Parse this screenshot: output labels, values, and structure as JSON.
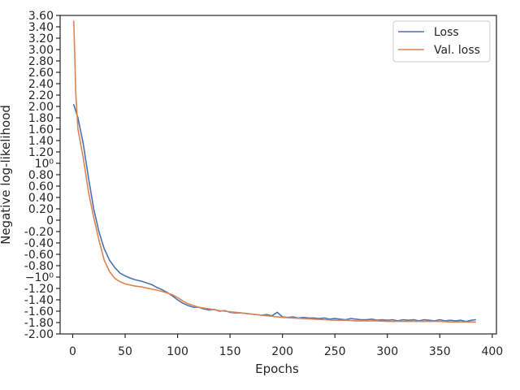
{
  "chart_data": {
    "type": "line",
    "xlabel": "Epochs",
    "ylabel": "Negative log-likelihood",
    "xlim": [
      -12,
      404
    ],
    "ylim": [
      -2.0,
      3.6
    ],
    "x_ticks": [
      0,
      50,
      100,
      150,
      200,
      250,
      300,
      350,
      400
    ],
    "y_ticks": [
      {
        "value": -2.0,
        "label": "-2.00"
      },
      {
        "value": -1.8,
        "label": "-1.80"
      },
      {
        "value": -1.6,
        "label": "-1.60"
      },
      {
        "value": -1.4,
        "label": "-1.40"
      },
      {
        "value": -1.2,
        "label": "-1.20"
      },
      {
        "value": -1.0,
        "label": "−10⁰"
      },
      {
        "value": -0.8,
        "label": "-0.80"
      },
      {
        "value": -0.6,
        "label": "-0.60"
      },
      {
        "value": -0.4,
        "label": "-0.40"
      },
      {
        "value": -0.2,
        "label": "-0.20"
      },
      {
        "value": 0.0,
        "label": "0"
      },
      {
        "value": 0.2,
        "label": "0.20"
      },
      {
        "value": 0.4,
        "label": "0.40"
      },
      {
        "value": 0.6,
        "label": "0.60"
      },
      {
        "value": 0.8,
        "label": "0.80"
      },
      {
        "value": 1.0,
        "label": "10⁰"
      },
      {
        "value": 1.2,
        "label": "1.20"
      },
      {
        "value": 1.4,
        "label": "1.40"
      },
      {
        "value": 1.6,
        "label": "1.60"
      },
      {
        "value": 1.8,
        "label": "1.80"
      },
      {
        "value": 2.0,
        "label": "2.00"
      },
      {
        "value": 2.2,
        "label": "2.20"
      },
      {
        "value": 2.4,
        "label": "2.40"
      },
      {
        "value": 2.6,
        "label": "2.60"
      },
      {
        "value": 2.8,
        "label": "2.80"
      },
      {
        "value": 3.0,
        "label": "3.00"
      },
      {
        "value": 3.2,
        "label": "3.20"
      },
      {
        "value": 3.4,
        "label": "3.40"
      },
      {
        "value": 3.6,
        "label": "3.60"
      }
    ],
    "grid": false,
    "legend_position": "top-right",
    "series": [
      {
        "name": "Loss",
        "color": "#4c72b0",
        "x": [
          1,
          5,
          10,
          15,
          20,
          25,
          30,
          35,
          40,
          45,
          50,
          55,
          60,
          65,
          70,
          75,
          80,
          85,
          90,
          95,
          100,
          105,
          110,
          115,
          120,
          125,
          130,
          135,
          140,
          145,
          150,
          155,
          160,
          165,
          170,
          175,
          180,
          185,
          190,
          195,
          200,
          205,
          210,
          215,
          220,
          225,
          230,
          235,
          240,
          245,
          250,
          255,
          260,
          265,
          270,
          275,
          280,
          285,
          290,
          295,
          300,
          305,
          310,
          315,
          320,
          325,
          330,
          335,
          340,
          345,
          350,
          355,
          360,
          365,
          370,
          375,
          380,
          384
        ],
        "y": [
          2.03,
          1.8,
          1.35,
          0.75,
          0.2,
          -0.2,
          -0.5,
          -0.7,
          -0.83,
          -0.93,
          -0.98,
          -1.02,
          -1.05,
          -1.07,
          -1.1,
          -1.13,
          -1.18,
          -1.22,
          -1.27,
          -1.33,
          -1.4,
          -1.46,
          -1.5,
          -1.53,
          -1.53,
          -1.56,
          -1.58,
          -1.57,
          -1.6,
          -1.59,
          -1.62,
          -1.63,
          -1.63,
          -1.64,
          -1.65,
          -1.66,
          -1.67,
          -1.66,
          -1.68,
          -1.62,
          -1.7,
          -1.71,
          -1.7,
          -1.72,
          -1.71,
          -1.72,
          -1.72,
          -1.73,
          -1.72,
          -1.74,
          -1.73,
          -1.74,
          -1.75,
          -1.73,
          -1.74,
          -1.75,
          -1.75,
          -1.74,
          -1.76,
          -1.75,
          -1.76,
          -1.75,
          -1.77,
          -1.75,
          -1.76,
          -1.75,
          -1.77,
          -1.75,
          -1.76,
          -1.77,
          -1.75,
          -1.77,
          -1.76,
          -1.77,
          -1.76,
          -1.78,
          -1.76,
          -1.75
        ]
      },
      {
        "name": "Val. loss",
        "color": "#dd8452",
        "x": [
          1,
          3,
          5,
          10,
          15,
          20,
          25,
          30,
          35,
          40,
          45,
          50,
          55,
          60,
          65,
          70,
          75,
          80,
          85,
          90,
          95,
          100,
          105,
          110,
          120,
          130,
          140,
          150,
          160,
          170,
          180,
          190,
          200,
          210,
          220,
          230,
          240,
          250,
          260,
          270,
          280,
          290,
          300,
          310,
          320,
          330,
          340,
          350,
          360,
          370,
          380,
          384
        ],
        "y": [
          3.5,
          2.2,
          1.6,
          1.1,
          0.5,
          0.05,
          -0.35,
          -0.7,
          -0.9,
          -1.02,
          -1.08,
          -1.12,
          -1.14,
          -1.16,
          -1.17,
          -1.19,
          -1.21,
          -1.23,
          -1.25,
          -1.28,
          -1.31,
          -1.36,
          -1.42,
          -1.47,
          -1.53,
          -1.56,
          -1.59,
          -1.61,
          -1.63,
          -1.65,
          -1.67,
          -1.69,
          -1.71,
          -1.72,
          -1.73,
          -1.74,
          -1.75,
          -1.76,
          -1.76,
          -1.77,
          -1.77,
          -1.77,
          -1.78,
          -1.78,
          -1.78,
          -1.78,
          -1.78,
          -1.78,
          -1.79,
          -1.79,
          -1.79,
          -1.79
        ]
      }
    ]
  }
}
